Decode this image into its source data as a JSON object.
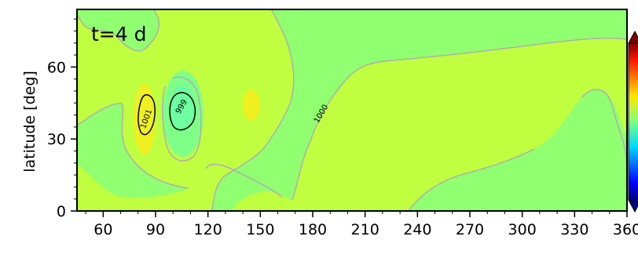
{
  "chart_data": {
    "type": "contour",
    "title": "",
    "panel_label": "t=4 d",
    "xlabel": "",
    "ylabel": "latitude [deg]",
    "xlim": [
      45,
      360
    ],
    "ylim": [
      0,
      84
    ],
    "xticks": [
      60,
      90,
      120,
      150,
      180,
      210,
      240,
      270,
      300,
      330,
      360
    ],
    "yticks": [
      0,
      30,
      60
    ],
    "grid": false,
    "colorbar": {
      "colormap": "jet",
      "extend": "both",
      "tick_labels": []
    },
    "contour_labels": [
      {
        "text": "1001",
        "x": 86,
        "y": 38,
        "rotation": -70
      },
      {
        "text": "999",
        "x": 106,
        "y": 43,
        "rotation": -60
      },
      {
        "text": "1000",
        "x": 186,
        "y": 40,
        "rotation": -60
      }
    ],
    "colors": {
      "background_field": "#c0ff40",
      "trough_field": "#90ff70",
      "low_core": "#6dffa0",
      "high_core": "#f0f020",
      "contour_line": "#b0a8b8",
      "labeled_contour": "#000000"
    }
  }
}
